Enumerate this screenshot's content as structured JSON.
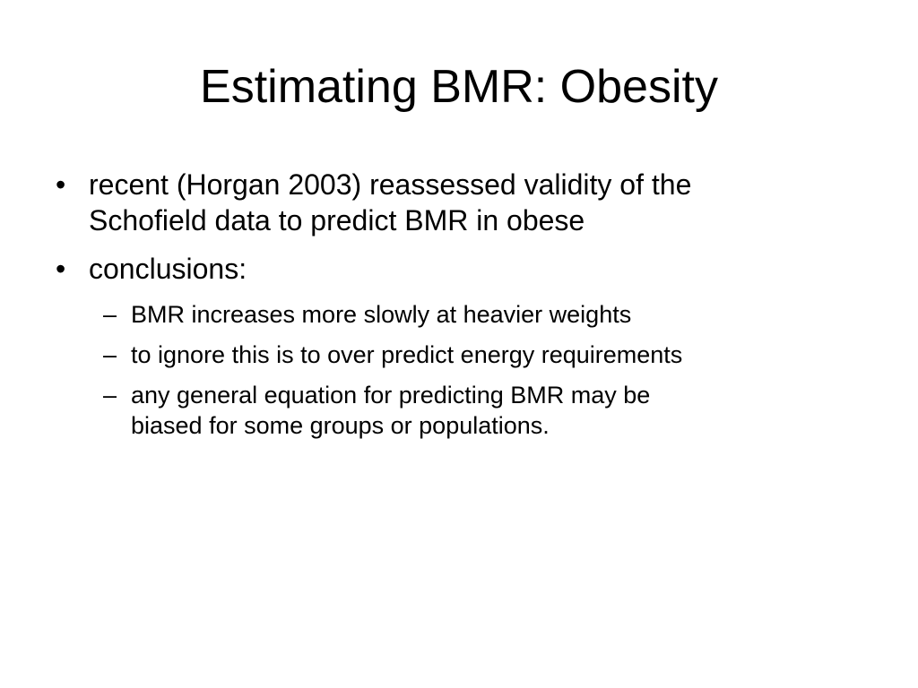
{
  "slide": {
    "title": "Estimating BMR: Obesity",
    "bullets": [
      {
        "marker": "•",
        "lines": [
          "recent (Horgan 2003) reassessed validity of the",
          "Schofield data to predict BMR in obese"
        ]
      },
      {
        "marker": "•",
        "lines": [
          "conclusions:"
        ],
        "sub": [
          {
            "marker": "–",
            "lines": [
              "BMR increases more slowly at heavier weights"
            ]
          },
          {
            "marker": "–",
            "lines": [
              "to ignore this is to over predict energy requirements"
            ]
          },
          {
            "marker": "–",
            "lines": [
              "any general equation for predicting BMR may be",
              "biased for some groups or populations."
            ]
          }
        ]
      }
    ]
  }
}
